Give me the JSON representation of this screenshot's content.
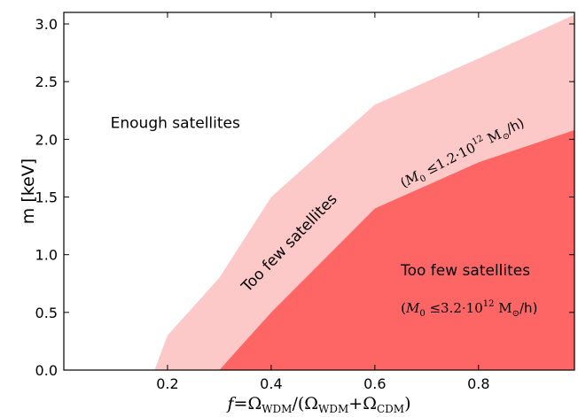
{
  "chart_data": {
    "type": "area",
    "xlabel": "f=Ω_WDM/(Ω_WDM+Ω_CDM)",
    "ylabel": "m [keV]",
    "xlim": [
      0.0,
      0.985
    ],
    "ylim": [
      0.0,
      3.1
    ],
    "x_ticks": [
      "0.2",
      "0.4",
      "0.6",
      "0.8"
    ],
    "x_tick_values": [
      0.2,
      0.4,
      0.6,
      0.8
    ],
    "y_ticks": [
      "0.0",
      "0.5",
      "1.0",
      "1.5",
      "2.0",
      "2.5",
      "3.0"
    ],
    "y_tick_values": [
      0.0,
      0.5,
      1.0,
      1.5,
      2.0,
      2.5,
      3.0
    ],
    "grid": false,
    "regions": [
      {
        "color": "#fdc8c8",
        "boundary": {
          "x": [
            0.175,
            0.2,
            0.3,
            0.4,
            0.6,
            0.8,
            0.985
          ],
          "y": [
            0.0,
            0.3,
            0.8,
            1.5,
            2.3,
            2.7,
            3.08
          ]
        }
      },
      {
        "color": "#fe6666",
        "boundary": {
          "x": [
            0.3,
            0.4,
            0.6,
            0.8,
            0.985
          ],
          "y": [
            0.0,
            0.5,
            1.4,
            1.8,
            2.08
          ]
        }
      }
    ],
    "annotations": [
      {
        "text": "Enough satellites",
        "x": 0.09,
        "y": 2.1,
        "rotation": 0
      },
      {
        "text": "Too few satellites",
        "x": 0.355,
        "y": 0.67,
        "rotation": -46
      },
      {
        "text": "(M_0 ≤1.2·10^12 M_⊙/h)",
        "x": 0.655,
        "y": 1.58,
        "rotation": -27
      },
      {
        "text": "Too few satellites",
        "x": 0.65,
        "y": 0.82,
        "rotation": 0
      },
      {
        "text": "(M_0 ≤3.2·10^12 M_⊙/h)",
        "x": 0.65,
        "y": 0.5,
        "rotation": 0
      }
    ]
  }
}
